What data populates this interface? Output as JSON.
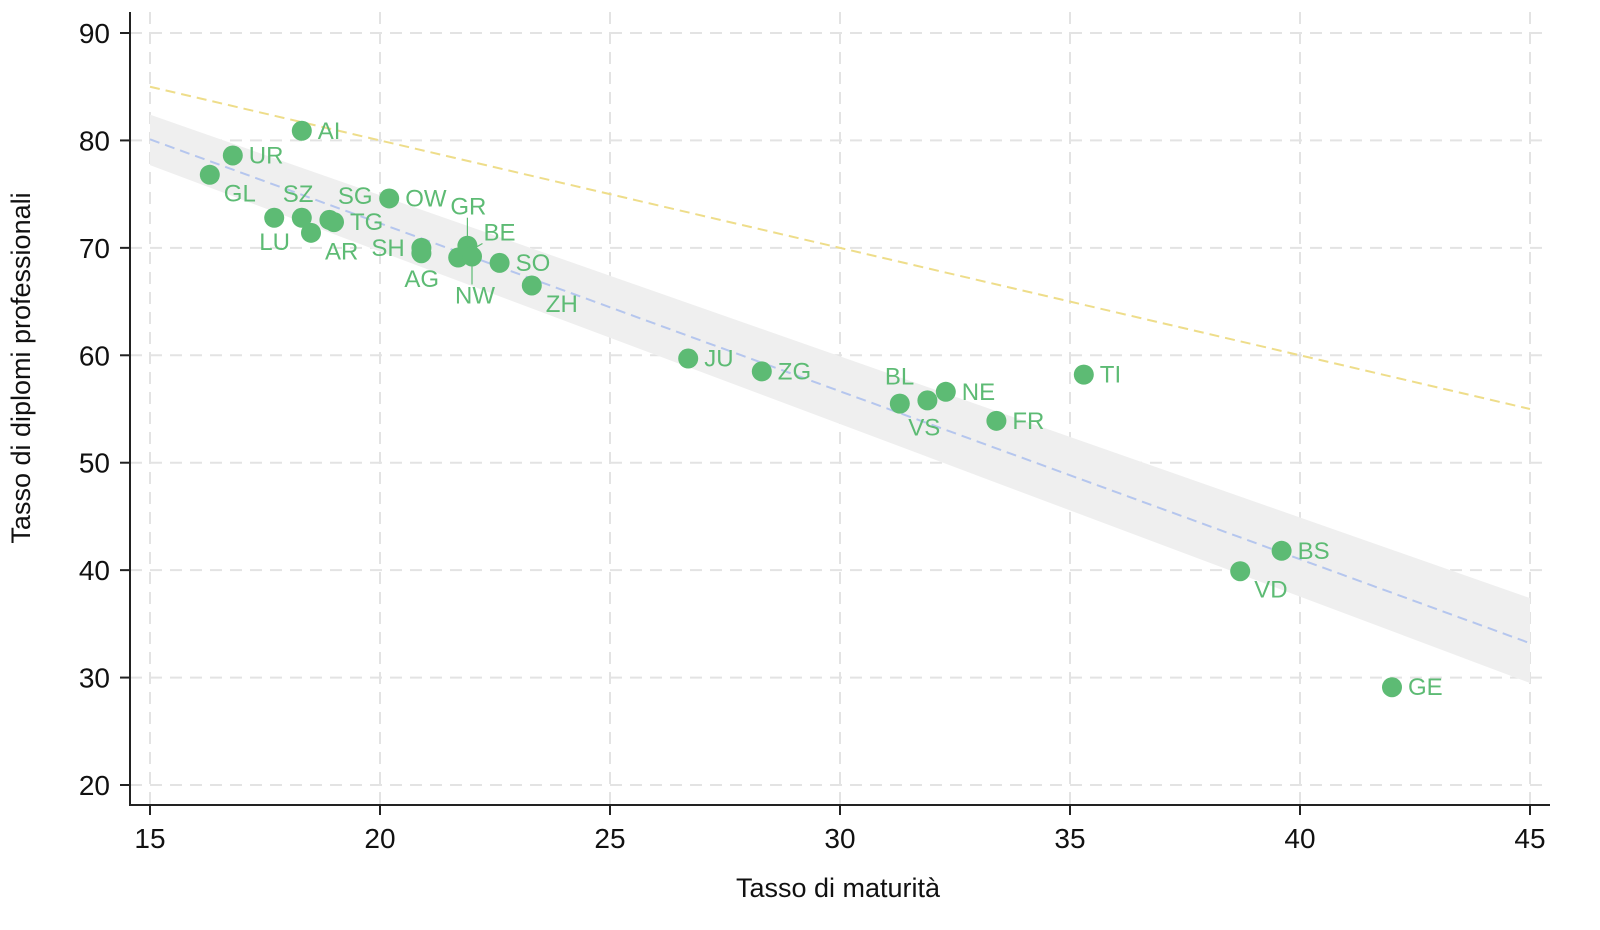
{
  "chart_data": {
    "type": "scatter",
    "title": "",
    "xlabel": "Tasso di maturità",
    "ylabel": "Tasso di diplomi professionali",
    "xlim": [
      15,
      45
    ],
    "ylim": [
      20,
      90
    ],
    "xticks": [
      15,
      20,
      25,
      30,
      35,
      40,
      45
    ],
    "yticks": [
      20,
      30,
      40,
      50,
      60,
      70,
      80,
      90
    ],
    "grid": true,
    "colors": {
      "points": "#5dbb74",
      "label": "#5dbb74",
      "fit": "#b5c6ee",
      "reference": "#eedd8a",
      "band": "#efefef",
      "grid": "#e3e3e3"
    },
    "points": [
      {
        "label": "AI",
        "x": 18.3,
        "y": 80.9
      },
      {
        "label": "UR",
        "x": 16.8,
        "y": 78.6
      },
      {
        "label": "GL",
        "x": 16.3,
        "y": 76.8
      },
      {
        "label": "SZ",
        "x": 17.7,
        "y": 72.8
      },
      {
        "label": "LU",
        "x": 18.3,
        "y": 72.8
      },
      {
        "label": "SG",
        "x": 18.9,
        "y": 72.6
      },
      {
        "label": "TG",
        "x": 19.0,
        "y": 72.4
      },
      {
        "label": "AR",
        "x": 18.5,
        "y": 71.4
      },
      {
        "label": "OW",
        "x": 20.2,
        "y": 74.6
      },
      {
        "label": "SH",
        "x": 20.9,
        "y": 70.0
      },
      {
        "label": "AG",
        "x": 20.9,
        "y": 69.5
      },
      {
        "label": "BE",
        "x": 21.7,
        "y": 69.1
      },
      {
        "label": "GR",
        "x": 21.9,
        "y": 70.2
      },
      {
        "label": "NW",
        "x": 22.0,
        "y": 69.2
      },
      {
        "label": "SO",
        "x": 22.6,
        "y": 68.6
      },
      {
        "label": "ZH",
        "x": 23.3,
        "y": 66.5
      },
      {
        "label": "JU",
        "x": 26.7,
        "y": 59.7
      },
      {
        "label": "ZG",
        "x": 28.3,
        "y": 58.5
      },
      {
        "label": "VS",
        "x": 31.3,
        "y": 55.5
      },
      {
        "label": "BL",
        "x": 31.9,
        "y": 55.8
      },
      {
        "label": "NE",
        "x": 32.3,
        "y": 56.6
      },
      {
        "label": "FR",
        "x": 33.4,
        "y": 53.9
      },
      {
        "label": "TI",
        "x": 35.3,
        "y": 58.2
      },
      {
        "label": "BS",
        "x": 39.6,
        "y": 41.8
      },
      {
        "label": "VD",
        "x": 38.7,
        "y": 39.9
      },
      {
        "label": "GE",
        "x": 42.0,
        "y": 29.1
      }
    ],
    "fit_line": {
      "x": [
        15,
        45
      ],
      "y": [
        80.1,
        33.2
      ]
    },
    "confidence_band": {
      "x": [
        15,
        45
      ],
      "lower": [
        77.7,
        29.5
      ],
      "upper": [
        82.4,
        37.4
      ]
    },
    "reference_line": {
      "x": [
        15,
        45
      ],
      "y": [
        85,
        55
      ]
    }
  }
}
